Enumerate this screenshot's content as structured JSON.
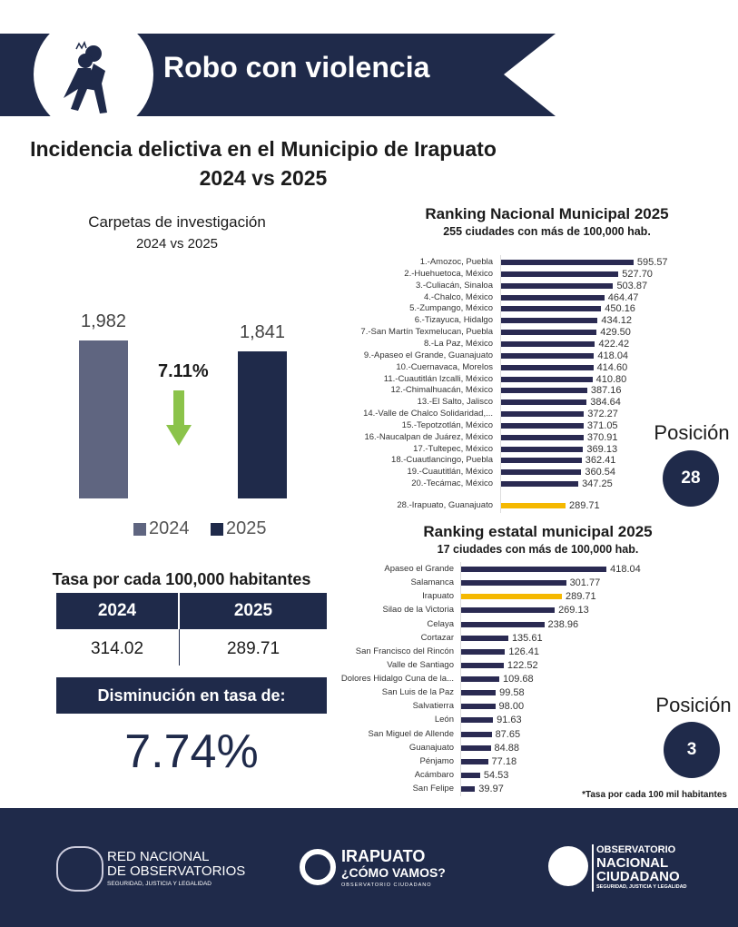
{
  "header": {
    "title": "Robo con violencia",
    "icon": "robbery-assault-icon"
  },
  "main_title": {
    "line1": "Incidencia delictiva en el Municipio de Irapuato",
    "line2": "2024 vs 2025"
  },
  "colors": {
    "navy": "#1f2a4a",
    "bar_2024": "#5f6580",
    "highlight": "#f5b800",
    "arrow": "#8bc34a"
  },
  "chart_data": [
    {
      "type": "bar",
      "title": "Carpetas de investigación",
      "subtitle": "2024 vs 2025",
      "categories": [
        "2024",
        "2025"
      ],
      "values": [
        1982,
        1841
      ],
      "value_labels": [
        "1,982",
        "1,841"
      ],
      "change_label": "7.11%",
      "change_direction": "down",
      "legend": [
        "2024",
        "2025"
      ],
      "legend_placement": "bottom"
    },
    {
      "type": "bar",
      "orientation": "horizontal",
      "title": "Ranking Nacional Municipal 2025",
      "subtitle": "255 ciudades con más de 100,000 hab.",
      "categories": [
        "1.-Amozoc, Puebla",
        "2.-Huehuetoca, México",
        "3.-Culiacán, Sinaloa",
        "4.-Chalco, México",
        "5.-Zumpango, México",
        "6.-Tizayuca, Hidalgo",
        "7.-San Martín Texmelucan, Puebla",
        "8.-La Paz, México",
        "9.-Apaseo el Grande, Guanajuato",
        "10.-Cuernavaca, Morelos",
        "11.-Cuautitlán Izcalli, México",
        "12.-Chimalhuacán, México",
        "13.-El Salto, Jalisco",
        "14.-Valle de Chalco Solidaridad,...",
        "15.-Tepotzotlán, México",
        "16.-Naucalpan de Juárez, México",
        "17.-Tultepec, México",
        "18.-Cuautlancingo, Puebla",
        "19.-Cuautitlán, México",
        "20.-Tecámac, México",
        "28.-Irapuato, Guanajuato"
      ],
      "values": [
        595.57,
        527.7,
        503.87,
        464.47,
        450.16,
        434.12,
        429.5,
        422.42,
        418.04,
        414.6,
        410.8,
        387.16,
        384.64,
        372.27,
        371.05,
        370.91,
        369.13,
        362.41,
        360.54,
        347.25,
        289.71
      ],
      "value_labels": [
        "595.57",
        "527.70",
        "503.87",
        "464.47",
        "450.16",
        "434.12",
        "429.50",
        "422.42",
        "418.04",
        "414.60",
        "410.80",
        "387.16",
        "384.64",
        "372.27",
        "371.05",
        "370.91",
        "369.13",
        "362.41",
        "360.54",
        "347.25",
        "289.71"
      ],
      "highlight": "28.-Irapuato, Guanajuato",
      "position_label": "Posición",
      "position": "28"
    },
    {
      "type": "bar",
      "orientation": "horizontal",
      "title": "Ranking estatal municipal 2025",
      "subtitle": "17 ciudades con más de 100,000 hab.",
      "categories": [
        "Apaseo el Grande",
        "Salamanca",
        "Irapuato",
        "Silao de la Victoria",
        "Celaya",
        "Cortazar",
        "San Francisco del Rincón",
        "Valle de Santiago",
        "Dolores Hidalgo Cuna de la...",
        "San Luis de la Paz",
        "Salvatierra",
        "León",
        "San Miguel de Allende",
        "Guanajuato",
        "Pénjamo",
        "Acámbaro",
        "San Felipe"
      ],
      "values": [
        418.04,
        301.77,
        289.71,
        269.13,
        238.96,
        135.61,
        126.41,
        122.52,
        109.68,
        99.58,
        98.0,
        91.63,
        87.65,
        84.88,
        77.18,
        54.53,
        39.97
      ],
      "value_labels": [
        "418.04",
        "301.77",
        "289.71",
        "269.13",
        "238.96",
        "135.61",
        "126.41",
        "122.52",
        "109.68",
        "99.58",
        "98.00",
        "91.63",
        "87.65",
        "84.88",
        "77.18",
        "54.53",
        "39.97"
      ],
      "highlight": "Irapuato",
      "position_label": "Posición",
      "position": "3",
      "footnote": "*Tasa por cada 100 mil habitantes"
    }
  ],
  "rate": {
    "title": "Tasa por cada 100,000 habitantes",
    "headers": [
      "2024",
      "2025"
    ],
    "values": [
      "314.02",
      "289.71"
    ],
    "decrease_label": "Disminución en tasa de:",
    "decrease_value": "7.74%"
  },
  "footer": {
    "logos": [
      {
        "name": "RED NACIONAL DE OBSERVATORIOS",
        "line1": "RED NACIONAL",
        "line2": "DE OBSERVATORIOS",
        "tagline": "SEGURIDAD, JUSTICIA Y LEGALIDAD"
      },
      {
        "name": "IRAPUATO ¿CÓMO VAMOS?",
        "line1": "IRAPUATO",
        "line2": "¿CÓMO VAMOS?",
        "tagline": "OBSERVATORIO CIUDADANO"
      },
      {
        "name": "OBSERVATORIO NACIONAL CIUDADANO",
        "line1": "OBSERVATORIO",
        "line2": "NACIONAL",
        "line3": "CIUDADANO",
        "tagline": "SEGURIDAD, JUSTICIA Y LEGALIDAD"
      }
    ]
  }
}
